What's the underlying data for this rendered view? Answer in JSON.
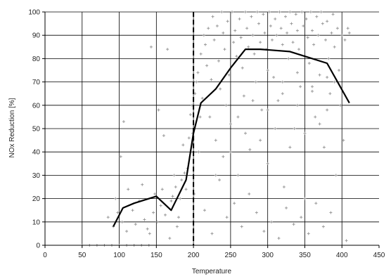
{
  "chart_data": {
    "type": "scatter",
    "title": "",
    "xlabel": "Temperature",
    "ylabel": "NOx Reduction [%]",
    "xlim": [
      0,
      450
    ],
    "ylim": [
      0,
      100
    ],
    "x_ticks": [
      "0",
      "50",
      "100",
      "150",
      "200",
      "250",
      "300",
      "350",
      "400",
      "450"
    ],
    "y_ticks": [
      "0",
      "10",
      "20",
      "30",
      "40",
      "50",
      "60",
      "70",
      "80",
      "90",
      "100"
    ],
    "grid": true,
    "reference_line_x": 200,
    "series": [
      {
        "kind": "scatter",
        "color": "#9a9a9a",
        "marker": "plus",
        "points": [
          [
            50,
            0
          ],
          [
            60,
            0
          ],
          [
            70,
            0
          ],
          [
            80,
            0
          ],
          [
            90,
            0
          ],
          [
            100,
            0
          ],
          [
            110,
            0
          ],
          [
            120,
            0
          ],
          [
            130,
            0
          ],
          [
            140,
            0
          ],
          [
            85,
            12
          ],
          [
            92,
            8
          ],
          [
            98,
            14
          ],
          [
            104,
            10
          ],
          [
            110,
            6
          ],
          [
            95,
            20
          ],
          [
            102,
            38
          ],
          [
            106,
            53
          ],
          [
            112,
            24
          ],
          [
            118,
            15
          ],
          [
            122,
            9
          ],
          [
            127,
            19
          ],
          [
            131,
            26
          ],
          [
            134,
            11
          ],
          [
            138,
            7
          ],
          [
            141,
            5
          ],
          [
            143,
            85
          ],
          [
            146,
            14
          ],
          [
            148,
            22
          ],
          [
            151,
            10
          ],
          [
            153,
            58
          ],
          [
            156,
            17
          ],
          [
            158,
            24
          ],
          [
            160,
            47
          ],
          [
            162,
            13
          ],
          [
            165,
            84
          ],
          [
            168,
            3
          ],
          [
            170,
            19
          ],
          [
            172,
            21
          ],
          [
            174,
            30
          ],
          [
            176,
            25
          ],
          [
            178,
            8
          ],
          [
            180,
            12
          ],
          [
            182,
            20
          ],
          [
            184,
            28
          ],
          [
            186,
            43
          ],
          [
            188,
            31
          ],
          [
            190,
            24
          ],
          [
            192,
            33
          ],
          [
            194,
            46
          ],
          [
            196,
            56
          ],
          [
            198,
            60
          ],
          [
            199,
            48
          ],
          [
            201,
            22
          ],
          [
            202,
            65
          ],
          [
            204,
            70
          ],
          [
            206,
            74
          ],
          [
            207,
            40
          ],
          [
            209,
            55
          ],
          [
            210,
            82
          ],
          [
            212,
            63
          ],
          [
            214,
            90
          ],
          [
            216,
            86
          ],
          [
            218,
            77
          ],
          [
            220,
            93
          ],
          [
            222,
            55
          ],
          [
            224,
            71
          ],
          [
            226,
            98
          ],
          [
            228,
            88
          ],
          [
            230,
            45
          ],
          [
            232,
            94
          ],
          [
            234,
            79
          ],
          [
            236,
            67
          ],
          [
            238,
            100
          ],
          [
            240,
            91
          ],
          [
            242,
            84
          ],
          [
            244,
            60
          ],
          [
            246,
            96
          ],
          [
            248,
            73
          ],
          [
            250,
            52
          ],
          [
            252,
            100
          ],
          [
            254,
            87
          ],
          [
            256,
            92
          ],
          [
            258,
            81
          ],
          [
            260,
            30
          ],
          [
            262,
            97
          ],
          [
            264,
            89
          ],
          [
            266,
            76
          ],
          [
            268,
            64
          ],
          [
            270,
            100
          ],
          [
            272,
            93
          ],
          [
            274,
            85
          ],
          [
            276,
            41
          ],
          [
            278,
            98
          ],
          [
            280,
            90
          ],
          [
            282,
            82
          ],
          [
            284,
            70
          ],
          [
            286,
            100
          ],
          [
            288,
            95
          ],
          [
            290,
            87
          ],
          [
            292,
            58
          ],
          [
            294,
            99
          ],
          [
            296,
            91
          ],
          [
            298,
            84
          ],
          [
            300,
            35
          ],
          [
            302,
            100
          ],
          [
            304,
            94
          ],
          [
            306,
            88
          ],
          [
            308,
            72
          ],
          [
            310,
            97
          ],
          [
            312,
            90
          ],
          [
            314,
            62
          ],
          [
            316,
            100
          ],
          [
            318,
            93
          ],
          [
            320,
            86
          ],
          [
            322,
            25
          ],
          [
            324,
            98
          ],
          [
            326,
            91
          ],
          [
            328,
            80
          ],
          [
            330,
            100
          ],
          [
            332,
            95
          ],
          [
            334,
            87
          ],
          [
            336,
            50
          ],
          [
            338,
            99
          ],
          [
            340,
            92
          ],
          [
            342,
            84
          ],
          [
            344,
            68
          ],
          [
            346,
            100
          ],
          [
            348,
            94
          ],
          [
            350,
            20
          ],
          [
            352,
            97
          ],
          [
            354,
            89
          ],
          [
            356,
            78
          ],
          [
            358,
            100
          ],
          [
            360,
            92
          ],
          [
            362,
            86
          ],
          [
            364,
            55
          ],
          [
            366,
            98
          ],
          [
            368,
            90
          ],
          [
            370,
            73
          ],
          [
            372,
            100
          ],
          [
            374,
            95
          ],
          [
            376,
            42
          ],
          [
            378,
            88
          ],
          [
            380,
            96
          ],
          [
            382,
            80
          ],
          [
            384,
            65
          ],
          [
            386,
            91
          ],
          [
            388,
            99
          ],
          [
            390,
            85
          ],
          [
            392,
            30
          ],
          [
            394,
            93
          ],
          [
            396,
            75
          ],
          [
            398,
            60
          ],
          [
            400,
            90
          ],
          [
            402,
            45
          ],
          [
            404,
            88
          ],
          [
            406,
            2
          ],
          [
            408,
            93
          ],
          [
            410,
            91
          ],
          [
            215,
            15
          ],
          [
            225,
            5
          ],
          [
            235,
            28
          ],
          [
            245,
            12
          ],
          [
            255,
            18
          ],
          [
            265,
            8
          ],
          [
            275,
            22
          ],
          [
            285,
            14
          ],
          [
            295,
            6
          ],
          [
            305,
            10
          ],
          [
            315,
            3
          ],
          [
            325,
            16
          ],
          [
            335,
            9
          ],
          [
            345,
            12
          ],
          [
            355,
            5
          ],
          [
            365,
            18
          ],
          [
            375,
            8
          ],
          [
            385,
            14
          ],
          [
            250,
            40
          ],
          [
            260,
            55
          ],
          [
            270,
            48
          ],
          [
            280,
            62
          ],
          [
            290,
            45
          ],
          [
            300,
            58
          ],
          [
            310,
            50
          ],
          [
            320,
            65
          ],
          [
            330,
            42
          ],
          [
            340,
            60
          ],
          [
            350,
            48
          ],
          [
            360,
            66
          ],
          [
            370,
            52
          ],
          [
            380,
            58
          ],
          [
            390,
            70
          ],
          [
            230,
            30
          ],
          [
            240,
            38
          ],
          [
            300,
            75
          ],
          [
            320,
            70
          ],
          [
            340,
            74
          ],
          [
            360,
            68
          ],
          [
            380,
            72
          ]
        ]
      },
      {
        "kind": "line",
        "color": "#000000",
        "points": [
          [
            92,
            8
          ],
          [
            105,
            16
          ],
          [
            120,
            18
          ],
          [
            150,
            21
          ],
          [
            170,
            15
          ],
          [
            190,
            28
          ],
          [
            200,
            48
          ],
          [
            210,
            61
          ],
          [
            230,
            67
          ],
          [
            250,
            76
          ],
          [
            270,
            84
          ],
          [
            290,
            84
          ],
          [
            330,
            83
          ],
          [
            350,
            81
          ],
          [
            380,
            78
          ],
          [
            410,
            61
          ]
        ]
      }
    ]
  }
}
